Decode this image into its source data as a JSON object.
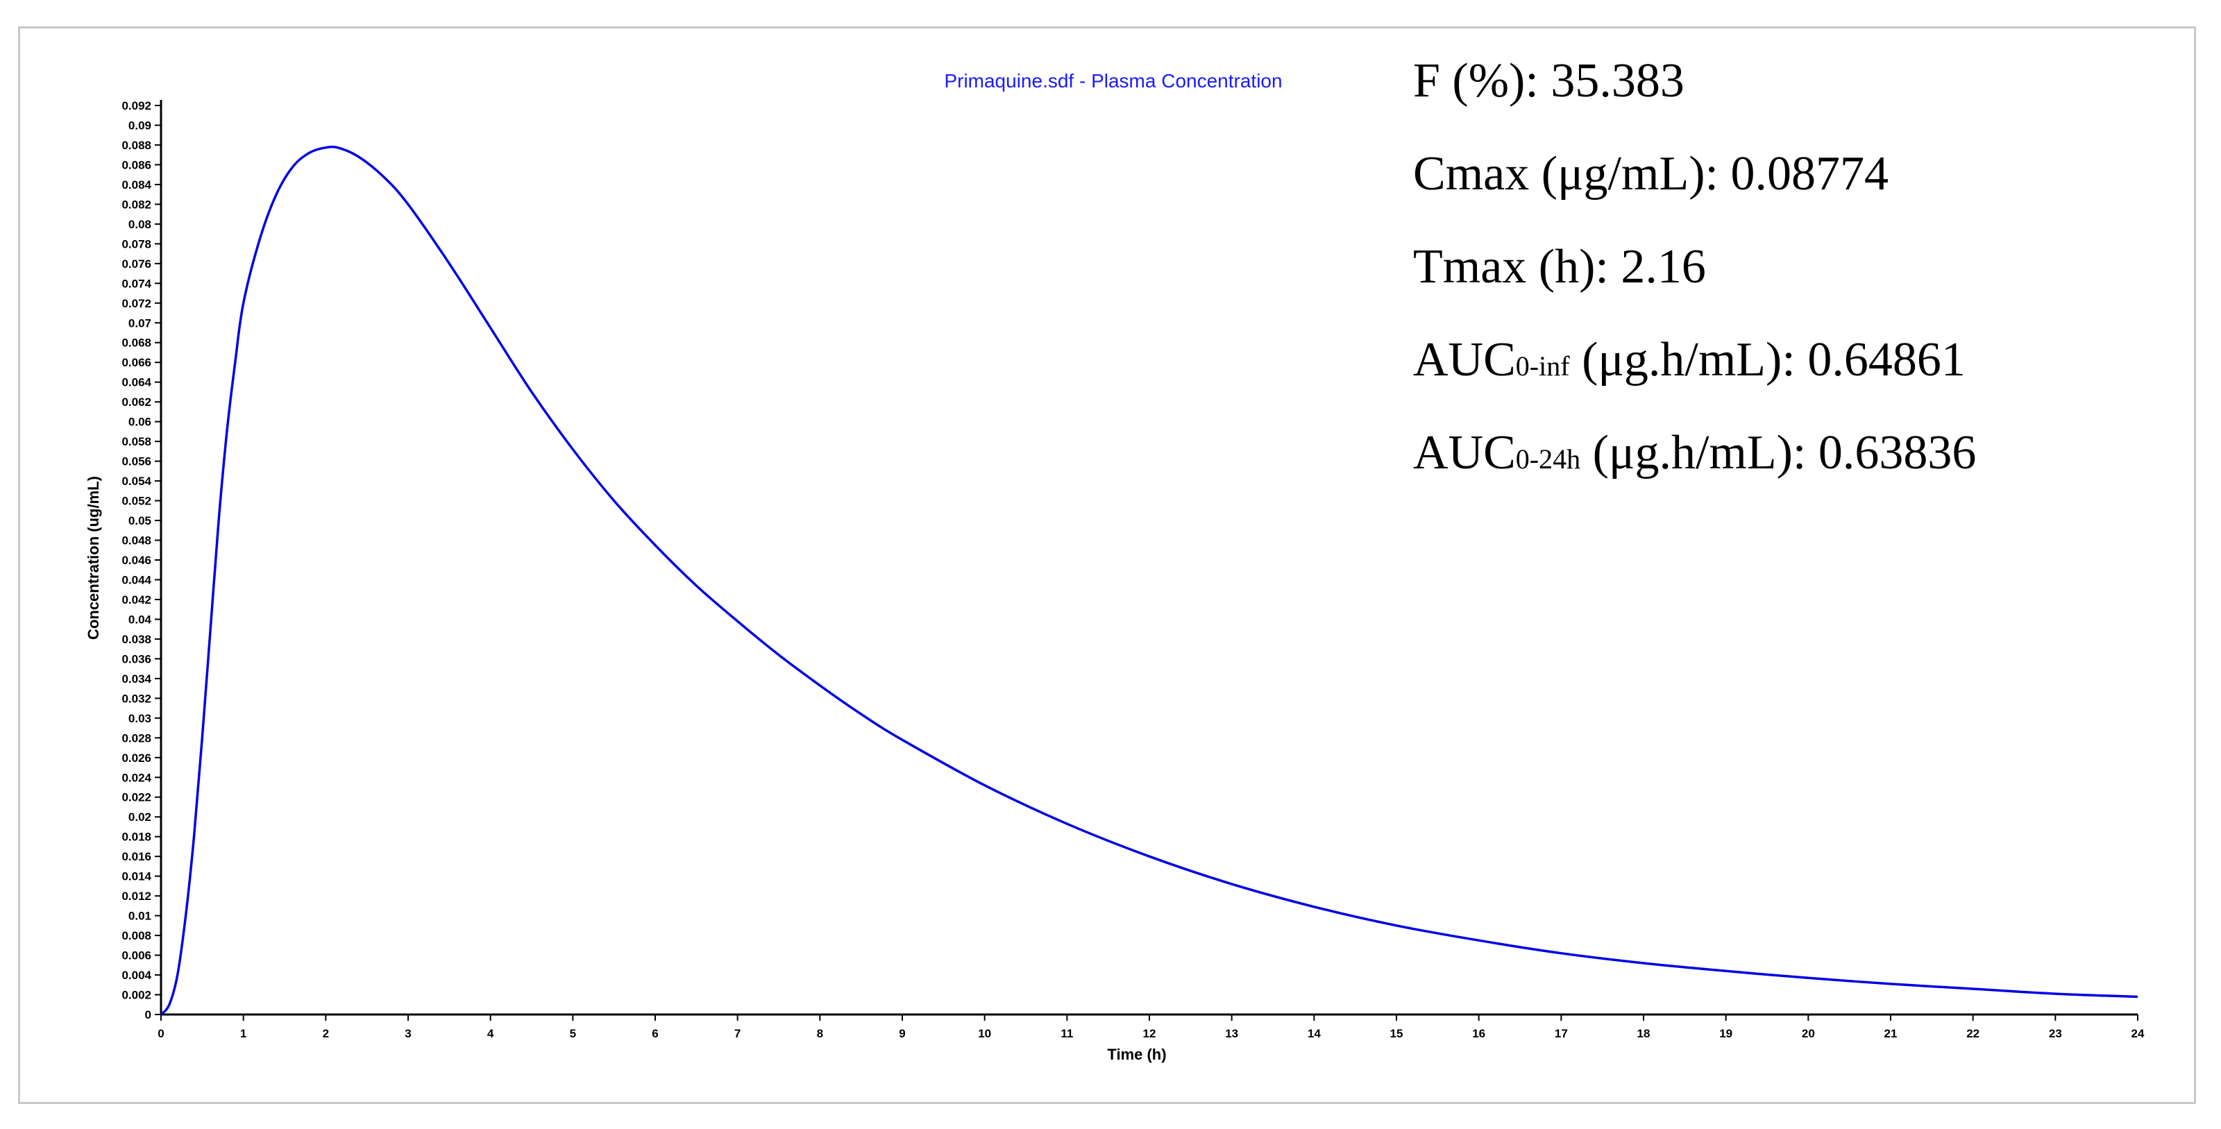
{
  "chart_data": {
    "type": "line",
    "title": "Primaquine.sdf - Plasma Concentration",
    "xlabel": "Time (h)",
    "ylabel": "Concentration (ug/mL)",
    "xlim": [
      0,
      24
    ],
    "ylim": [
      0,
      0.092
    ],
    "x_ticks": [
      "0",
      "1",
      "2",
      "3",
      "4",
      "5",
      "6",
      "7",
      "8",
      "9",
      "10",
      "11",
      "12",
      "13",
      "14",
      "15",
      "16",
      "17",
      "18",
      "19",
      "20",
      "21",
      "22",
      "23",
      "24"
    ],
    "y_ticks": [
      "0",
      "0.002",
      "0.004",
      "0.006",
      "0.008",
      "0.01",
      "0.012",
      "0.014",
      "0.016",
      "0.018",
      "0.02",
      "0.022",
      "0.024",
      "0.026",
      "0.028",
      "0.03",
      "0.032",
      "0.034",
      "0.036",
      "0.038",
      "0.04",
      "0.042",
      "0.044",
      "0.046",
      "0.048",
      "0.05",
      "0.052",
      "0.054",
      "0.056",
      "0.058",
      "0.06",
      "0.062",
      "0.064",
      "0.066",
      "0.068",
      "0.07",
      "0.072",
      "0.074",
      "0.076",
      "0.078",
      "0.08",
      "0.082",
      "0.084",
      "0.086",
      "0.088",
      "0.09",
      "0.092"
    ],
    "grid": false,
    "series": [
      {
        "name": "Plasma Concentration",
        "color": "#0000e6",
        "x": [
          0,
          0.1,
          0.2,
          0.3,
          0.4,
          0.5,
          0.6,
          0.7,
          0.8,
          0.9,
          1.0,
          1.2,
          1.4,
          1.6,
          1.8,
          2.0,
          2.16,
          2.4,
          2.7,
          3.0,
          3.5,
          4.0,
          4.5,
          5.0,
          5.5,
          6.0,
          6.5,
          7.0,
          7.5,
          8.0,
          8.5,
          9.0,
          10,
          11,
          12,
          13,
          14,
          15,
          16,
          17,
          18,
          19,
          20,
          21,
          22,
          23,
          24
        ],
        "values": [
          0,
          0.001,
          0.004,
          0.01,
          0.018,
          0.028,
          0.039,
          0.05,
          0.059,
          0.066,
          0.072,
          0.0785,
          0.083,
          0.0858,
          0.0872,
          0.08774,
          0.0877,
          0.0868,
          0.0848,
          0.082,
          0.076,
          0.0695,
          0.063,
          0.0572,
          0.052,
          0.0475,
          0.0434,
          0.0398,
          0.0364,
          0.0333,
          0.0304,
          0.0278,
          0.0232,
          0.0193,
          0.016,
          0.0132,
          0.0109,
          0.009,
          0.0075,
          0.0062,
          0.0052,
          0.0044,
          0.0037,
          0.0031,
          0.0026,
          0.0021,
          0.0018
        ]
      }
    ]
  },
  "stats": {
    "f_label": "F (%): ",
    "f_value": "35.383",
    "cmax_label": "Cmax (μg/mL): ",
    "cmax_value": "0.08774",
    "tmax_label": "Tmax (h): ",
    "tmax_value": "2.16",
    "auc_inf_main": "AUC",
    "auc_inf_sub": "0-inf",
    "auc_inf_rest": " (μg.h/mL): ",
    "auc_inf_value": "0.64861",
    "auc_24_main": "AUC",
    "auc_24_sub": "0-24h",
    "auc_24_rest": " (μg.h/mL): ",
    "auc_24_value": "0.63836"
  }
}
